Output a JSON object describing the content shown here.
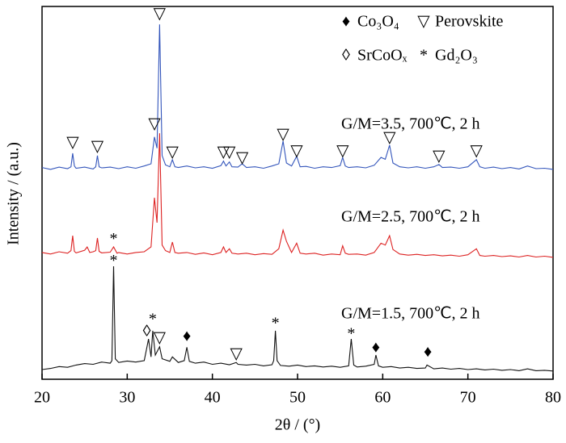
{
  "chart_data": {
    "type": "line",
    "xlabel": "2θ / (°)",
    "ylabel": "Intensity / (a.u.)",
    "xlim": [
      20,
      80
    ],
    "xticks": [
      20,
      30,
      40,
      50,
      60,
      70,
      80
    ],
    "ylim": [
      0,
      100
    ],
    "legend": [
      {
        "symbol": "♦",
        "label": "Co₃O₄"
      },
      {
        "symbol": "▽",
        "label": "Perovskite"
      },
      {
        "symbol": "◊",
        "label": "SrCoOₓ"
      },
      {
        "symbol": "*",
        "label": "Gd₂O₃"
      }
    ],
    "series": [
      {
        "name": "G/M=3.5, 700℃, 2 h",
        "color": "#3355bb",
        "x": [
          20,
          21,
          22,
          23,
          23.4,
          23.6,
          23.8,
          24,
          25,
          26,
          26.3,
          26.5,
          26.7,
          27,
          28,
          29,
          30,
          31,
          32,
          32.8,
          33.2,
          33.5,
          33.8,
          34.1,
          34.5,
          35,
          35.3,
          35.6,
          36,
          37,
          38,
          39,
          40,
          41,
          41.3,
          41.6,
          42,
          42.3,
          43,
          43.5,
          44,
          45,
          46,
          47,
          47.8,
          48.3,
          48.7,
          49.3,
          49.9,
          50.3,
          51,
          52,
          53,
          54,
          55,
          55.3,
          55.6,
          56,
          57,
          58,
          59,
          59.8,
          60.3,
          60.8,
          61.2,
          62,
          63,
          64,
          65,
          66,
          66.6,
          67,
          68,
          69,
          70,
          71,
          71.4,
          72,
          73,
          74,
          75,
          76,
          77,
          78,
          79,
          80
        ],
        "values": [
          56.8,
          56.3,
          56.9,
          56.5,
          57,
          60.6,
          57.2,
          56.6,
          56.9,
          56.4,
          57,
          60,
          57,
          56.7,
          56.9,
          56.5,
          57,
          56.6,
          57.2,
          57.8,
          65,
          62,
          95.2,
          60,
          57.5,
          57,
          58.9,
          57,
          56.8,
          57.2,
          56.7,
          57,
          56.6,
          57.3,
          58.5,
          57.2,
          58.3,
          57,
          56.9,
          57.8,
          56.8,
          57,
          56.6,
          57.2,
          57.8,
          63.9,
          58,
          57.2,
          59.8,
          57,
          57.1,
          56.6,
          57,
          56.8,
          57.3,
          59.5,
          57.2,
          56.8,
          57,
          56.7,
          57.4,
          59.5,
          59,
          62.8,
          58,
          57,
          56.7,
          57,
          56.6,
          57,
          57.6,
          56.8,
          56.9,
          56.6,
          57,
          58.9,
          57,
          56.6,
          56.9,
          56.5,
          56.8,
          56.4,
          57.2,
          56.5,
          56.6,
          56.3
        ]
      },
      {
        "name": "G/M=2.5, 700℃, 2 h",
        "color": "#dd2222",
        "x": [
          20,
          21,
          22,
          23,
          23.4,
          23.6,
          23.8,
          24,
          25,
          25.3,
          25.6,
          26,
          26.3,
          26.5,
          26.7,
          27,
          28,
          28.4,
          28.8,
          29,
          30,
          31,
          32,
          32.8,
          33.2,
          33.5,
          33.8,
          34.1,
          34.5,
          35,
          35.3,
          35.6,
          36,
          37,
          38,
          39,
          40,
          41,
          41.3,
          41.6,
          42,
          42.3,
          43,
          44,
          45,
          46,
          47,
          47.8,
          48.3,
          48.7,
          49.3,
          49.9,
          50.3,
          51,
          52,
          53,
          54,
          55,
          55.3,
          55.6,
          56,
          57,
          58,
          59,
          59.8,
          60.3,
          60.8,
          61.2,
          62,
          63,
          64,
          65,
          66,
          67,
          68,
          69,
          70,
          71,
          71.4,
          72,
          73,
          74,
          75,
          76,
          77,
          78,
          79,
          80
        ],
        "values": [
          34,
          33.6,
          34.2,
          33.8,
          34.5,
          38.5,
          34.3,
          33.9,
          34.6,
          35.5,
          34,
          34.2,
          34.5,
          37.9,
          34.3,
          33.9,
          34.1,
          35.5,
          33.8,
          34,
          33.6,
          34,
          34.2,
          35.5,
          48.7,
          42,
          66,
          36,
          34.5,
          34,
          36.8,
          34,
          33.8,
          34,
          33.5,
          33.9,
          33.4,
          34,
          35.5,
          34,
          35,
          33.8,
          33.6,
          33.8,
          33.4,
          33.7,
          33.5,
          35,
          40,
          37,
          34,
          36.5,
          33.8,
          33.6,
          33.8,
          33.3,
          33.6,
          33.4,
          35.8,
          33.8,
          33.5,
          33.6,
          33.3,
          34,
          36.5,
          36,
          38.5,
          34.8,
          33.6,
          33.3,
          33.5,
          33.2,
          33.4,
          33.1,
          33.3,
          33,
          33.4,
          35,
          33.2,
          33,
          33.2,
          32.9,
          33.1,
          32.8,
          33.2,
          32.8,
          33,
          32.7
        ]
      },
      {
        "name": "G/M=1.5, 700℃, 2 h",
        "color": "#111111",
        "x": [
          20,
          21,
          22,
          23,
          24,
          25,
          26,
          27,
          28,
          28.2,
          28.4,
          28.6,
          29,
          30,
          31,
          32,
          32.5,
          32.8,
          33,
          33.3,
          33.8,
          34.1,
          35,
          35.3,
          36,
          36.7,
          37,
          37.3,
          38,
          39,
          40,
          41,
          42,
          42.8,
          43,
          44,
          45,
          46,
          47,
          47.2,
          47.4,
          47.6,
          48,
          49,
          50,
          51,
          52,
          53,
          54,
          55,
          56,
          56.3,
          56.6,
          57,
          58,
          59,
          59.2,
          59.5,
          60,
          61,
          62,
          63,
          64,
          65,
          65.2,
          66,
          67,
          68,
          69,
          70,
          71,
          72,
          73,
          74,
          75,
          76,
          77,
          78,
          79,
          80
        ],
        "values": [
          2.6,
          2.9,
          3.4,
          3.2,
          3.8,
          4.2,
          4,
          4.6,
          4.3,
          5,
          30.3,
          5.5,
          4.5,
          4.9,
          4.6,
          5,
          10.8,
          6,
          13,
          6.5,
          8.7,
          5.5,
          4.8,
          6,
          4.5,
          5,
          8.6,
          4.8,
          4.3,
          4.6,
          4,
          4.3,
          3.9,
          4.5,
          4,
          3.8,
          4,
          3.6,
          3.9,
          5,
          13,
          5,
          3.7,
          3.5,
          3.8,
          3.4,
          3.6,
          3.3,
          3.5,
          3.2,
          3.6,
          10.8,
          3.8,
          3.3,
          3.5,
          4,
          6.5,
          3.6,
          3.2,
          3.4,
          3,
          3.2,
          2.9,
          3,
          3.8,
          2.8,
          3,
          2.7,
          2.9,
          2.6,
          2.8,
          2.5,
          2.7,
          2.4,
          2.6,
          2.3,
          2.8,
          2.3,
          2.4,
          2.2
        ]
      }
    ],
    "annotations": [
      {
        "text": "▽",
        "x": 23.6,
        "y": 63.2
      },
      {
        "text": "▽",
        "x": 26.5,
        "y": 62.1
      },
      {
        "text": "▽",
        "x": 33.2,
        "y": 68.2
      },
      {
        "text": "▽",
        "x": 33.8,
        "y": 97.8
      },
      {
        "text": "▽",
        "x": 35.3,
        "y": 60.6
      },
      {
        "text": "▽",
        "x": 41.3,
        "y": 60.6
      },
      {
        "text": "▽",
        "x": 42,
        "y": 60.6
      },
      {
        "text": "▽",
        "x": 43.5,
        "y": 59.1
      },
      {
        "text": "▽",
        "x": 48.3,
        "y": 65.4
      },
      {
        "text": "▽",
        "x": 49.9,
        "y": 61
      },
      {
        "text": "▽",
        "x": 55.3,
        "y": 61
      },
      {
        "text": "▽",
        "x": 60.8,
        "y": 64.5
      },
      {
        "text": "▽",
        "x": 66.6,
        "y": 59.5
      },
      {
        "text": "▽",
        "x": 71,
        "y": 61
      },
      {
        "text": "*",
        "x": 28.4,
        "y": 37.4
      },
      {
        "text": "*",
        "x": 28.4,
        "y": 31.5
      },
      {
        "text": "◊",
        "x": 32.3,
        "y": 12.6
      },
      {
        "text": "*",
        "x": 33,
        "y": 15.8
      },
      {
        "text": "▽",
        "x": 33.8,
        "y": 10.8
      },
      {
        "text": "♦",
        "x": 37,
        "y": 11.3
      },
      {
        "text": "▽",
        "x": 42.8,
        "y": 6.5
      },
      {
        "text": "*",
        "x": 47.4,
        "y": 14.7
      },
      {
        "text": "*",
        "x": 56.3,
        "y": 11.9
      },
      {
        "text": "♦",
        "x": 59.2,
        "y": 8.2
      },
      {
        "text": "♦",
        "x": 65.3,
        "y": 7.1
      }
    ]
  }
}
